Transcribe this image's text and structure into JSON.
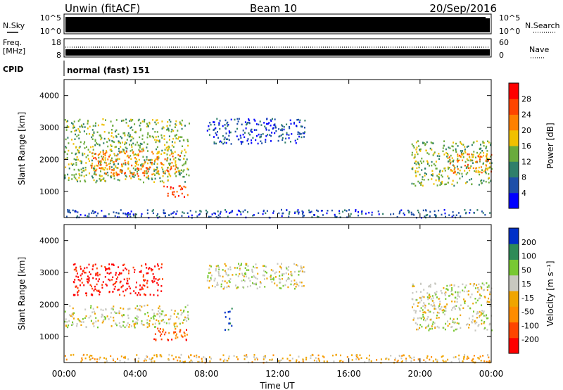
{
  "header": {
    "station": "Unwin (fitACF)",
    "beam": "Beam 10",
    "date": "20/Sep/2016"
  },
  "sky": {
    "label": "N.Sky",
    "tick_hi": "10^5",
    "tick_lo": "10^0",
    "right_label": "N.Search",
    "right_tick_hi": "10^5",
    "right_tick_lo": "10^0"
  },
  "freq": {
    "label_a": "Freq.",
    "label_b": "[MHz]",
    "tick_hi": "18",
    "tick_lo": "8",
    "right_label": "Nave",
    "right_tick_hi": "60",
    "right_tick_lo": "0"
  },
  "cpid": {
    "label": "CPID",
    "value": "normal (fast) 151"
  },
  "colors": {
    "power": [
      "#0000ff",
      "#1e4fa8",
      "#2f7f6a",
      "#6aab3c",
      "#f0c000",
      "#ff8000",
      "#ff4500",
      "#ff0000"
    ],
    "velocity": [
      "#ff0000",
      "#ff4500",
      "#ff8c00",
      "#f0a500",
      "#c8c8c0",
      "#78c832",
      "#2e8b57",
      "#0030c8"
    ]
  },
  "chart_data": [
    {
      "type": "heatmap",
      "name": "power",
      "ylabel": "Slant Range [km]",
      "yticks": [
        "1000",
        "2000",
        "3000",
        "4000"
      ],
      "ylim": [
        180,
        4500
      ],
      "colorbar_label": "Power [dB]",
      "colorbar_ticks": [
        "4",
        "8",
        "12",
        "16",
        "20",
        "24",
        "28"
      ],
      "regions": [
        {
          "t0": 0.0,
          "t1": 7.0,
          "r0": 1300,
          "r1": 3300,
          "level": 3
        },
        {
          "t0": 1.5,
          "t1": 6.5,
          "r0": 1500,
          "r1": 2300,
          "level": 5
        },
        {
          "t0": 5.5,
          "t1": 7.0,
          "r0": 850,
          "r1": 1200,
          "level": 6
        },
        {
          "t0": 8.0,
          "t1": 13.5,
          "r0": 2500,
          "r1": 3300,
          "level": 1
        },
        {
          "t0": 19.5,
          "t1": 24.0,
          "r0": 1200,
          "r1": 2600,
          "level": 3
        },
        {
          "t0": 21.5,
          "t1": 24.0,
          "r0": 1600,
          "r1": 2200,
          "level": 5
        },
        {
          "t0": 0.0,
          "t1": 24.0,
          "r0": 200,
          "r1": 450,
          "level": 1
        }
      ]
    },
    {
      "type": "heatmap",
      "name": "velocity",
      "ylabel": "Slant Range [km]",
      "yticks": [
        "1000",
        "2000",
        "3000",
        "4000"
      ],
      "ylim": [
        180,
        4500
      ],
      "xlabel": "Time UT",
      "xticks": [
        "00:00",
        "04:00",
        "08:00",
        "12:00",
        "16:00",
        "20:00",
        "00:00"
      ],
      "xlim": [
        0,
        24
      ],
      "colorbar_label": "Velocity [m s⁻¹]",
      "colorbar_ticks": [
        "-200",
        "-100",
        "-50",
        "-15",
        "15",
        "50",
        "100",
        "200"
      ],
      "regions": [
        {
          "t0": 0.0,
          "t1": 7.0,
          "r0": 1300,
          "r1": 2000,
          "level": 4
        },
        {
          "t0": 0.5,
          "t1": 5.5,
          "r0": 2300,
          "r1": 3300,
          "level": 0
        },
        {
          "t0": 5.0,
          "t1": 7.0,
          "r0": 900,
          "r1": 1300,
          "level": 1
        },
        {
          "t0": 8.0,
          "t1": 13.5,
          "r0": 2500,
          "r1": 3300,
          "level": 4
        },
        {
          "t0": 9.0,
          "t1": 9.4,
          "r0": 1200,
          "r1": 1900,
          "level": 7
        },
        {
          "t0": 19.5,
          "t1": 24.0,
          "r0": 1200,
          "r1": 2700,
          "level": 4
        },
        {
          "t0": 0.0,
          "t1": 24.0,
          "r0": 200,
          "r1": 450,
          "level": 3
        }
      ]
    }
  ]
}
